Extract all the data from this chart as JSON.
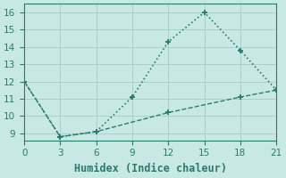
{
  "line1_x": [
    0,
    3,
    6,
    9,
    12,
    15,
    18,
    21
  ],
  "line1_y": [
    12.0,
    8.8,
    9.1,
    11.1,
    14.3,
    16.0,
    13.8,
    11.5
  ],
  "line2_x": [
    0,
    3,
    6,
    12,
    18,
    21
  ],
  "line2_y": [
    12.0,
    8.8,
    9.1,
    10.2,
    11.1,
    11.5
  ],
  "color": "#2a7a6e",
  "bg_color": "#c8e8e4",
  "grid_major_color": "#aacfcc",
  "grid_minor_color": "#bcdbd8",
  "xlabel": "Humidex (Indice chaleur)",
  "xlim": [
    0,
    21
  ],
  "ylim": [
    9,
    16
  ],
  "xticks": [
    0,
    3,
    6,
    9,
    12,
    15,
    18,
    21
  ],
  "yticks": [
    9,
    10,
    11,
    12,
    13,
    14,
    15,
    16
  ],
  "xlabel_fontsize": 8.5,
  "tick_fontsize": 7.5
}
